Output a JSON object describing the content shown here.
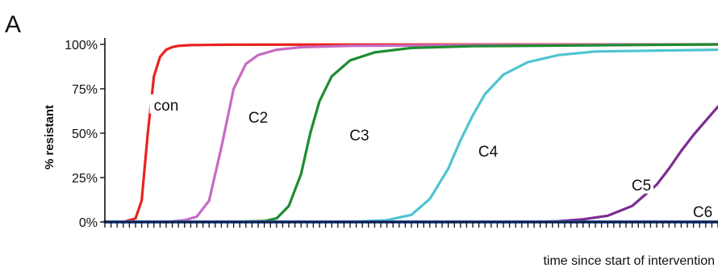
{
  "panel_label": "A",
  "chart_data": {
    "type": "line",
    "title": "",
    "xlabel": "time since start of intervention",
    "ylabel": "% resistant",
    "ylim": [
      0,
      100
    ],
    "yticks": [
      {
        "value": 0,
        "label": "0%"
      },
      {
        "value": 25,
        "label": "25%"
      },
      {
        "value": 50,
        "label": "50%"
      },
      {
        "value": 75,
        "label": "75%"
      },
      {
        "value": 100,
        "label": "100%"
      }
    ],
    "xlim": [
      0,
      100
    ],
    "xtick_count": 100,
    "grid": false,
    "legend": "none",
    "series": [
      {
        "name": "con",
        "color": "#e8231f",
        "x": [
          0,
          3,
          5,
          6,
          7,
          8,
          9,
          10,
          11,
          12,
          14,
          20,
          40,
          100
        ],
        "y": [
          0,
          0,
          2,
          12,
          50,
          82,
          93,
          97,
          98.5,
          99.2,
          99.6,
          99.8,
          99.9,
          100
        ]
      },
      {
        "name": "C2",
        "color": "#c86bc4",
        "x": [
          0,
          10,
          13,
          15,
          17,
          19,
          21,
          23,
          25,
          28,
          32,
          40,
          60,
          100
        ],
        "y": [
          0,
          0,
          1,
          3,
          12,
          42,
          75,
          89,
          94,
          97,
          98.4,
          99.2,
          99.6,
          100
        ]
      },
      {
        "name": "C3",
        "color": "#1e8c30",
        "x": [
          0,
          20,
          26,
          28,
          30,
          32,
          33.5,
          35,
          37,
          40,
          44,
          50,
          60,
          100
        ],
        "y": [
          0,
          0,
          0.5,
          2,
          9,
          27,
          50,
          68,
          82,
          91,
          95.5,
          98,
          99,
          100
        ]
      },
      {
        "name": "C4",
        "color": "#4fc4cf",
        "x": [
          0,
          40,
          46,
          50,
          53,
          56,
          58,
          60,
          62,
          65,
          69,
          74,
          80,
          100
        ],
        "y": [
          0,
          0,
          1,
          4,
          13,
          30,
          46,
          60,
          72,
          83,
          90,
          94,
          96,
          97
        ]
      },
      {
        "name": "C5",
        "color": "#7d2b92",
        "x": [
          0,
          70,
          74,
          78,
          82,
          86,
          88,
          90,
          92,
          94,
          96,
          98,
          100
        ],
        "y": [
          0,
          0,
          0.4,
          1.5,
          3.5,
          9,
          15,
          21,
          30,
          40,
          49,
          57,
          65
        ]
      },
      {
        "name": "C6",
        "color": "#2b58b3",
        "x": [
          0,
          100
        ],
        "y": [
          0,
          0
        ]
      }
    ],
    "annotations": [
      "con",
      "C2",
      "C3",
      "C4",
      "C5",
      "C6"
    ]
  }
}
